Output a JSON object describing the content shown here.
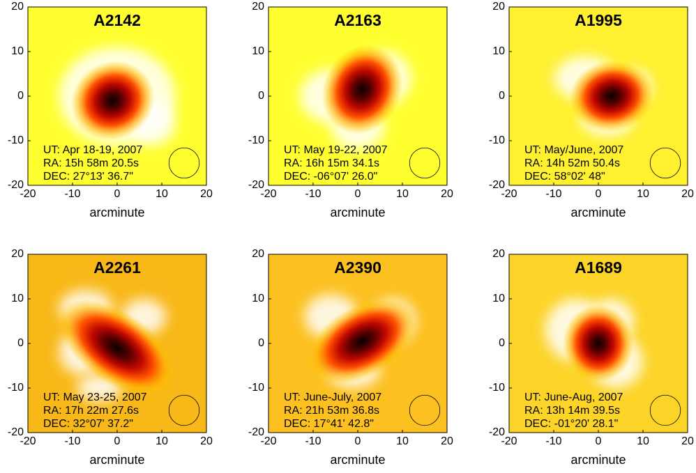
{
  "chart_data": [
    {
      "type": "heatmap",
      "title": "A2142",
      "xlabel": "arcminute",
      "xlim": [
        -20,
        20
      ],
      "ylim": [
        -20,
        20
      ],
      "xticks": [
        -20,
        -10,
        0,
        10,
        20
      ],
      "yticks": [
        -20,
        -10,
        0,
        10,
        20
      ],
      "annotations": [
        "UT: Apr 18-19, 2007",
        "RA: 15h 58m 20.5s",
        "DEC: 27°13' 36.7\""
      ]
    },
    {
      "type": "heatmap",
      "title": "A2163",
      "xlabel": "arcminute",
      "xlim": [
        -20,
        20
      ],
      "ylim": [
        -20,
        20
      ],
      "xticks": [
        -20,
        -10,
        0,
        10,
        20
      ],
      "yticks": [
        -20,
        -10,
        0,
        10,
        20
      ],
      "annotations": [
        "UT: May 19-22, 2007",
        "RA: 16h 15m 34.1s",
        "DEC: -06°07' 26.0\""
      ]
    },
    {
      "type": "heatmap",
      "title": "A1995",
      "xlabel": "arcminute",
      "xlim": [
        -20,
        20
      ],
      "ylim": [
        -20,
        20
      ],
      "xticks": [
        -20,
        -10,
        0,
        10,
        20
      ],
      "yticks": [
        -20,
        -10,
        0,
        10,
        20
      ],
      "annotations": [
        "UT: May/June, 2007",
        "RA: 14h 52m 50.4s",
        "DEC: 58°02' 48\""
      ]
    },
    {
      "type": "heatmap",
      "title": "A2261",
      "xlabel": "arcminute",
      "xlim": [
        -20,
        20
      ],
      "ylim": [
        -20,
        20
      ],
      "xticks": [
        -20,
        -10,
        0,
        10,
        20
      ],
      "yticks": [
        -20,
        -10,
        0,
        10,
        20
      ],
      "annotations": [
        "UT: May 23-25, 2007",
        "RA: 17h 22m 27.6s",
        "DEC: 32°07' 37.2\""
      ]
    },
    {
      "type": "heatmap",
      "title": "A2390",
      "xlabel": "arcminute",
      "xlim": [
        -20,
        20
      ],
      "ylim": [
        -20,
        20
      ],
      "xticks": [
        -20,
        -10,
        0,
        10,
        20
      ],
      "yticks": [
        -20,
        -10,
        0,
        10,
        20
      ],
      "annotations": [
        "UT: June-July, 2007",
        "RA: 21h 53m 36.8s",
        "DEC: 17°41' 42.8\""
      ]
    },
    {
      "type": "heatmap",
      "title": "A1689",
      "xlabel": "arcminute",
      "xlim": [
        -20,
        20
      ],
      "ylim": [
        -20,
        20
      ],
      "xticks": [
        -20,
        -10,
        0,
        10,
        20
      ],
      "yticks": [
        -20,
        -10,
        0,
        10,
        20
      ],
      "annotations": [
        "UT: June-Aug, 2007",
        "RA: 13h 14m 39.5s",
        "DEC: -01°20' 28.1\""
      ]
    }
  ]
}
